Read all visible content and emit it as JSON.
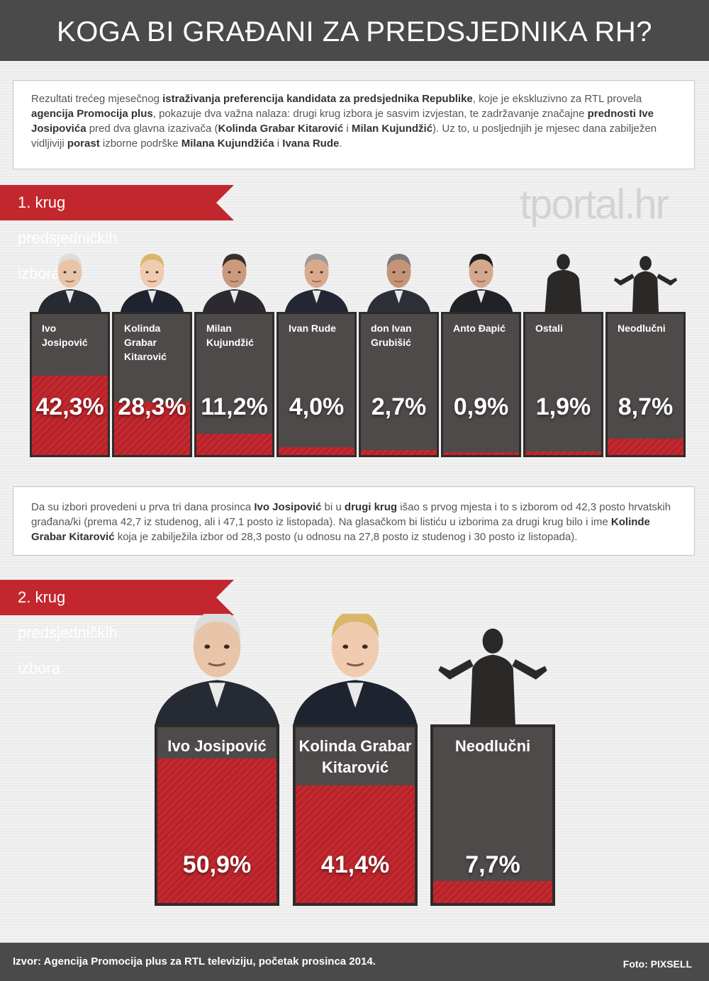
{
  "title": "KOGA BI GRAĐANI ZA PREDSJEDNIKA RH?",
  "intro": [
    {
      "t": "Rezultati trećeg mjesečnog ",
      "b": false
    },
    {
      "t": "istraživanja preferencija kandidata za predsjednika Republike",
      "b": true
    },
    {
      "t": ", koje je ekskluzivno za RTL provela ",
      "b": false
    },
    {
      "t": "agencija Promocija plus",
      "b": true
    },
    {
      "t": ", pokazuje dva važna nalaza: drugi krug izbora je sasvim izvjestan, te zadržavanje značajne ",
      "b": false
    },
    {
      "t": "prednosti Ive Josipovića",
      "b": true
    },
    {
      "t": " pred dva glavna izazivača (",
      "b": false
    },
    {
      "t": "Kolinda Grabar Kitarović",
      "b": true
    },
    {
      "t": " i ",
      "b": false
    },
    {
      "t": "Milan Kujundžić",
      "b": true
    },
    {
      "t": "). Uz to, u posljednjih je mjesec dana zabilježen vidljiviji ",
      "b": false
    },
    {
      "t": "porast",
      "b": true
    },
    {
      "t": " izborne podrške ",
      "b": false
    },
    {
      "t": "Milana Kujundžića",
      "b": true
    },
    {
      "t": " i ",
      "b": false
    },
    {
      "t": "Ivana Rude",
      "b": true
    },
    {
      "t": ".",
      "b": false
    }
  ],
  "round1_label": "1. krug predsjedničkih izbora",
  "watermark": "tportal.hr",
  "middle_text": [
    {
      "t": "Da su izbori provedeni u prva tri dana prosinca ",
      "b": false
    },
    {
      "t": "Ivo Josipović",
      "b": true
    },
    {
      "t": " bi u ",
      "b": false
    },
    {
      "t": "drugi krug",
      "b": true
    },
    {
      "t": " išao s prvog mjesta i to s izborom od 42,3 posto hrvatskih građana/ki (prema 42,7 iz studenog, ali i 47,1 posto iz listopada). Na glasačkom bi listiću u izborima za drugi krug bilo i ime ",
      "b": false
    },
    {
      "t": "Kolinde Grabar Kitarović",
      "b": true
    },
    {
      "t": " koja je zabilježila izbor od 28,3 posto (u odnosu na 27,8 posto iz studenog i 30 posto iz listopada).",
      "b": false
    }
  ],
  "round2_label": "2. krug predsjedničkih izbora",
  "footer": {
    "source": "Izvor: Agencija Promocija plus za RTL televiziju, početak prosinca 2014.",
    "photo": "Foto: PIXSELL"
  },
  "colors": {
    "accent": "#c2272d",
    "card": "#4f4a4a",
    "header": "#4a4a4a"
  },
  "chart_data": [
    {
      "type": "bar",
      "title": "1. krug predsjedničkih izbora",
      "categories": [
        "Ivo Josipović",
        "Kolinda Grabar Kitarović",
        "Milan Kujundžić",
        "Ivan Rude",
        "don Ivan Grubišić",
        "Anto Đapić",
        "Ostali",
        "Neodlučni"
      ],
      "values": [
        42.3,
        28.3,
        11.2,
        4.0,
        2.7,
        0.9,
        1.9,
        8.7
      ],
      "labels": [
        "42,3%",
        "28,3%",
        "11,2%",
        "4,0%",
        "2,7%",
        "0,9%",
        "1,9%",
        "8,7%"
      ],
      "unit": "%",
      "ylim": [
        0,
        100
      ]
    },
    {
      "type": "bar",
      "title": "2. krug predsjedničkih izbora",
      "categories": [
        "Ivo Josipović",
        "Kolinda Grabar Kitarović",
        "Neodlučni"
      ],
      "values": [
        50.9,
        41.4,
        7.7
      ],
      "labels": [
        "50,9%",
        "41,4%",
        "7,7%"
      ],
      "unit": "%",
      "ylim": [
        0,
        100
      ]
    }
  ]
}
